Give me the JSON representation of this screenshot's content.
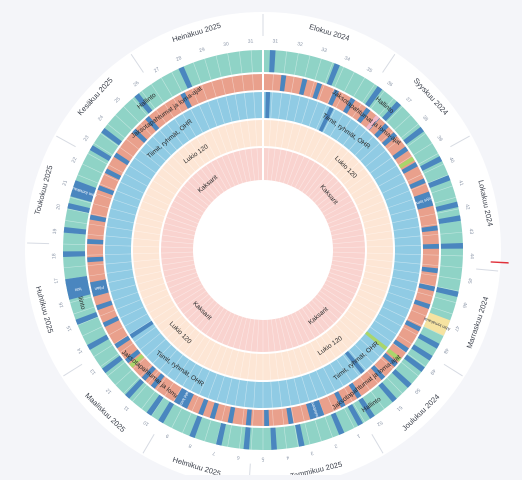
{
  "months": [
    {
      "label": "Elokuu 2024",
      "weeks": [
        "31",
        "32",
        "33",
        "34",
        "35"
      ]
    },
    {
      "label": "Syyskuu 2024",
      "weeks": [
        "36",
        "37",
        "38",
        "39"
      ]
    },
    {
      "label": "Lokakuu 2024",
      "weeks": [
        "40",
        "41",
        "42",
        "43",
        "44"
      ]
    },
    {
      "label": "Marraskuu 2024",
      "weeks": [
        "45",
        "46",
        "47",
        "48"
      ]
    },
    {
      "label": "Joulukuu 2024",
      "weeks": [
        "49",
        "50",
        "51",
        "52"
      ]
    },
    {
      "label": "Tammikuu 2025",
      "weeks": [
        "1",
        "2",
        "3",
        "4",
        "5"
      ]
    },
    {
      "label": "Helmikuu 2025",
      "weeks": [
        "6",
        "7",
        "8",
        "9"
      ]
    },
    {
      "label": "Maaliskuu 2025",
      "weeks": [
        "10",
        "11",
        "12",
        "13"
      ]
    },
    {
      "label": "Huhtikuu 2025",
      "weeks": [
        "14",
        "15",
        "16",
        "17",
        "18"
      ]
    },
    {
      "label": "Toukokuu 2025",
      "weeks": [
        "19",
        "20",
        "21",
        "22"
      ]
    },
    {
      "label": "Kesäkuu 2025",
      "weeks": [
        "23",
        "24",
        "25",
        "26"
      ]
    },
    {
      "label": "Heinäkuu 2025",
      "weeks": [
        "27",
        "28",
        "29",
        "30",
        "31"
      ]
    }
  ],
  "rings": [
    {
      "name": "Hallinto",
      "base_color": "#8fd3c6",
      "mark_color": "#4a86bf",
      "label_positions": [
        40,
        145,
        255,
        322
      ]
    },
    {
      "name": "Jaksotapahtumat ja loma-ajat",
      "base_color": "#e9a08c",
      "mark_color": "#4a86bf",
      "label_positions": [
        38,
        142,
        220,
        325
      ]
    },
    {
      "name": "Tiimit, ryhmät, OHR",
      "base_color": "#90cbe4",
      "mark_color": "#4a86bf",
      "label_positions": [
        35,
        140,
        215,
        320
      ]
    },
    {
      "name": "Lukio 120",
      "base_color": "#fde6d5",
      "mark_color": "#4a86bf",
      "label_positions": [
        45,
        145,
        225,
        325
      ]
    },
    {
      "name": "Kaksarit",
      "base_color": "#f9d3cf",
      "mark_color": "#4a86bf",
      "label_positions": [
        50,
        140,
        225,
        320
      ]
    }
  ],
  "events": [
    {
      "label": "Abin lomakausi",
      "ring": 0,
      "angle": 288,
      "color": "#4a86bf"
    },
    {
      "label": "Istu",
      "ring": 0,
      "angle": 258,
      "color": "#4a86bf"
    },
    {
      "label": "Pilan",
      "ring": 1,
      "angle": 257,
      "color": "#4a86bf"
    },
    {
      "label": "Syys loma",
      "ring": 1,
      "angle": 73,
      "color": "#4a86bf"
    },
    {
      "label": "Abin lomakausi",
      "ring": 0,
      "angle": 113,
      "color": "#f6e3a1"
    },
    {
      "label": "Joulutoima",
      "ring": 1,
      "angle": 162,
      "color": "#4a86bf"
    },
    {
      "label": "Talvi loma",
      "ring": 1,
      "angle": 208,
      "color": "#4a86bf"
    }
  ],
  "marks": {
    "ring0": [
      2,
      21,
      35,
      42,
      52,
      62,
      68,
      76,
      80,
      88,
      102,
      118,
      122,
      126,
      132,
      138,
      146,
      150,
      156,
      168,
      176,
      184,
      192,
      200,
      210,
      214,
      222,
      232,
      240,
      248,
      260,
      268,
      275,
      282,
      300,
      306,
      320,
      335
    ],
    "ring1": [
      6,
      13,
      18,
      24,
      30,
      36,
      40,
      44,
      48,
      54,
      60,
      66,
      82,
      88,
      96,
      102,
      108,
      116,
      124,
      130,
      136,
      146,
      152,
      170,
      178,
      184,
      190,
      196,
      200,
      218,
      222,
      230,
      236,
      244,
      250,
      266,
      272,
      280,
      290,
      296,
      302,
      312,
      318,
      332
    ],
    "ring2": [
      1,
      25,
      140,
      236
    ],
    "accent": [
      {
        "ring": 1,
        "angle": 40,
        "color": "#f3b8c6"
      },
      {
        "ring": 1,
        "angle": 58,
        "color": "#a9d66b"
      },
      {
        "ring": 1,
        "angle": 128,
        "color": "#a9d66b"
      },
      {
        "ring": 1,
        "angle": 228,
        "color": "#a9d66b"
      },
      {
        "ring": 2,
        "angle": 128,
        "color": "#a9d66b"
      }
    ]
  },
  "colors": {
    "background": "#f4f5f9",
    "outer_ring": "#ffffff",
    "today_marker": "#e0303a",
    "text": "#2b2b2b"
  }
}
